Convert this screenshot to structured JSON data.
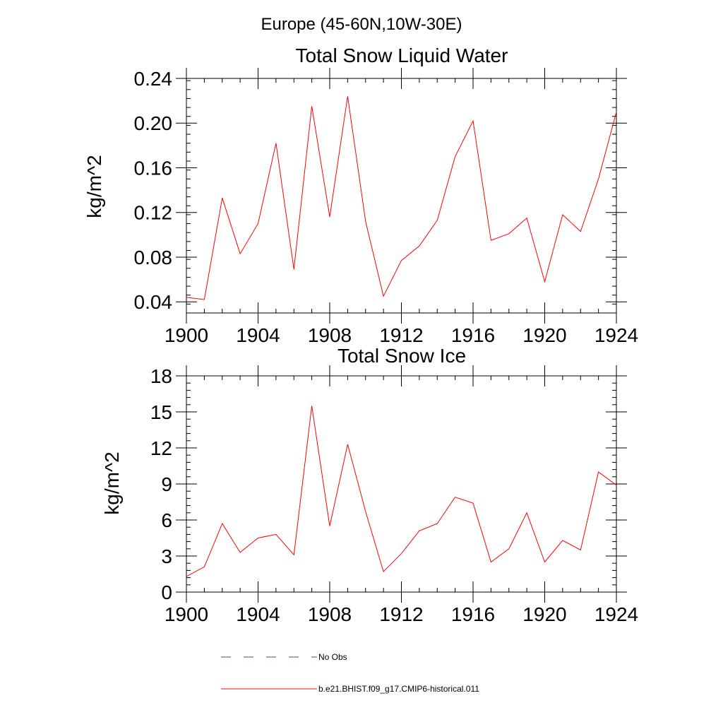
{
  "suptitle": "Europe (45-60N,10W-30E)",
  "chart_data": [
    {
      "type": "line",
      "title": "Total Snow Liquid Water",
      "xlabel": "",
      "ylabel": "kg/m^2",
      "xlim": [
        1900,
        1924
      ],
      "ylim": [
        0.03,
        0.24
      ],
      "x_ticks": [
        1900,
        1904,
        1908,
        1912,
        1916,
        1920,
        1924
      ],
      "y_ticks": [
        0.04,
        0.08,
        0.12,
        0.16,
        0.2,
        0.24
      ],
      "y_tick_labels": [
        "0.04",
        "0.08",
        "0.12",
        "0.16",
        "0.20",
        "0.24"
      ],
      "y_minor_step": 0.008,
      "x": [
        1900,
        1901,
        1902,
        1903,
        1904,
        1905,
        1906,
        1907,
        1908,
        1909,
        1910,
        1911,
        1912,
        1913,
        1914,
        1915,
        1916,
        1917,
        1918,
        1919,
        1920,
        1921,
        1922,
        1923,
        1924
      ],
      "series": [
        {
          "name": "b.e21.BHIST.f09_g17.CMIP6-historical.011",
          "color": "#ff0000",
          "values": [
            0.044,
            0.042,
            0.133,
            0.083,
            0.11,
            0.182,
            0.069,
            0.215,
            0.116,
            0.224,
            0.112,
            0.045,
            0.077,
            0.09,
            0.113,
            0.17,
            0.202,
            0.095,
            0.101,
            0.115,
            0.058,
            0.118,
            0.103,
            0.15,
            0.21
          ]
        }
      ],
      "grid": false
    },
    {
      "type": "line",
      "title": "Total Snow Ice",
      "xlabel": "",
      "ylabel": "kg/m^2",
      "xlim": [
        1900,
        1924
      ],
      "ylim": [
        0,
        18
      ],
      "x_ticks": [
        1900,
        1904,
        1908,
        1912,
        1916,
        1920,
        1924
      ],
      "y_ticks": [
        0,
        3,
        6,
        9,
        12,
        15,
        18
      ],
      "y_tick_labels": [
        "0",
        "3",
        "6",
        "9",
        "12",
        "15",
        "18"
      ],
      "y_minor_step": 0.6,
      "x": [
        1900,
        1901,
        1902,
        1903,
        1904,
        1905,
        1906,
        1907,
        1908,
        1909,
        1910,
        1911,
        1912,
        1913,
        1914,
        1915,
        1916,
        1917,
        1918,
        1919,
        1920,
        1921,
        1922,
        1923,
        1924
      ],
      "series": [
        {
          "name": "b.e21.BHIST.f09_g17.CMIP6-historical.011",
          "color": "#ff0000",
          "values": [
            1.3,
            2.1,
            5.7,
            3.3,
            4.5,
            4.8,
            3.1,
            15.5,
            5.5,
            12.3,
            6.7,
            1.7,
            3.2,
            5.1,
            5.7,
            7.9,
            7.4,
            2.5,
            3.6,
            6.6,
            2.5,
            4.3,
            3.5,
            10.0,
            8.9
          ]
        }
      ],
      "grid": false
    }
  ],
  "legend": {
    "placement": "bottom",
    "items": [
      {
        "label": "No Obs",
        "color": "#4a4a8c",
        "style": "dashed"
      },
      {
        "label": "b.e21.BHIST.f09_g17.CMIP6-historical.011",
        "color": "#ff0000",
        "style": "solid"
      }
    ]
  }
}
